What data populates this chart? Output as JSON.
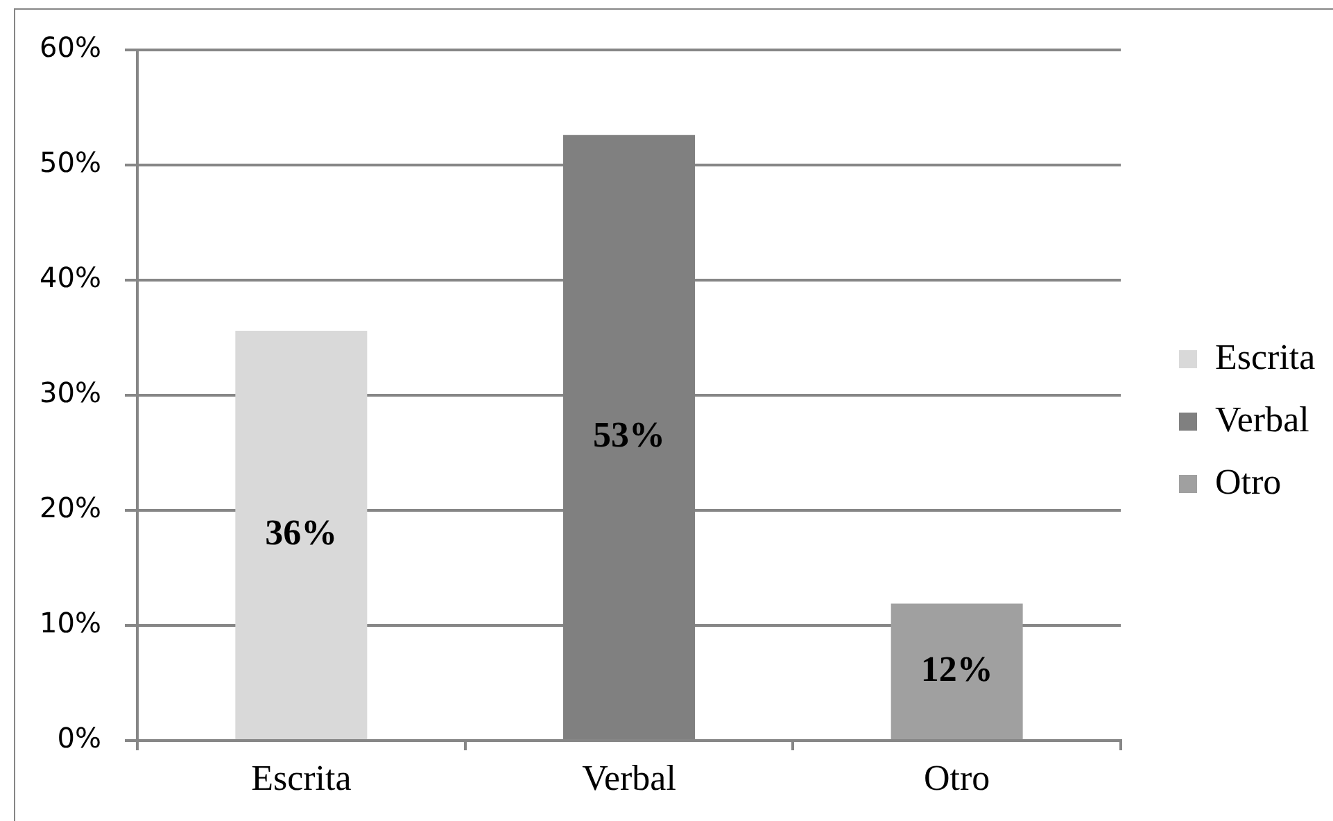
{
  "chart_data": {
    "type": "bar",
    "categories": [
      "Escrita",
      "Verbal",
      "Otro"
    ],
    "series": [
      {
        "name": "Escrita",
        "color": "#d9d9d9",
        "values": [
          35.6,
          null,
          null
        ],
        "value_labels": [
          "36%",
          null,
          null
        ]
      },
      {
        "name": "Verbal",
        "color": "#808080",
        "values": [
          null,
          52.6,
          null
        ],
        "value_labels": [
          null,
          "53%",
          null
        ]
      },
      {
        "name": "Otro",
        "color": "#a0a0a0",
        "values": [
          null,
          null,
          11.9
        ],
        "value_labels": [
          null,
          null,
          "12%"
        ]
      }
    ],
    "ylim": [
      0,
      60
    ],
    "yticks": [
      {
        "value": 0,
        "label": "0%"
      },
      {
        "value": 10,
        "label": "10%"
      },
      {
        "value": 20,
        "label": "20%"
      },
      {
        "value": 30,
        "label": "30%"
      },
      {
        "value": 40,
        "label": "40%"
      },
      {
        "value": 50,
        "label": "50%"
      },
      {
        "value": 60,
        "label": "60%"
      }
    ],
    "grid": "y",
    "legend": "right"
  }
}
